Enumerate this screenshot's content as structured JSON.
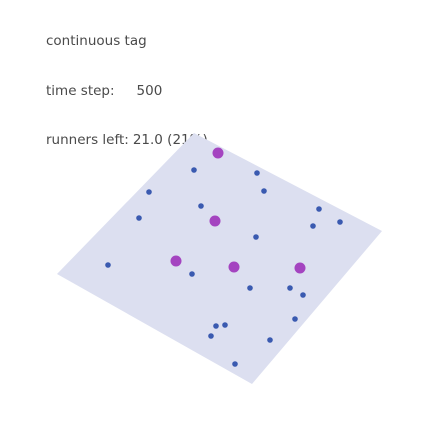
{
  "title": "continuous tag",
  "time_step_label": "time step:",
  "time_step_value": "500",
  "runners_label": "runners left:",
  "runners_value": "21.0 (21%)",
  "colors": {
    "field": "#dcdff0",
    "runner": "#3a5ab0",
    "tagger": "#a444c0",
    "text": "#4a4a4a"
  },
  "counts": {
    "taggers": 5,
    "runners": 21
  }
}
